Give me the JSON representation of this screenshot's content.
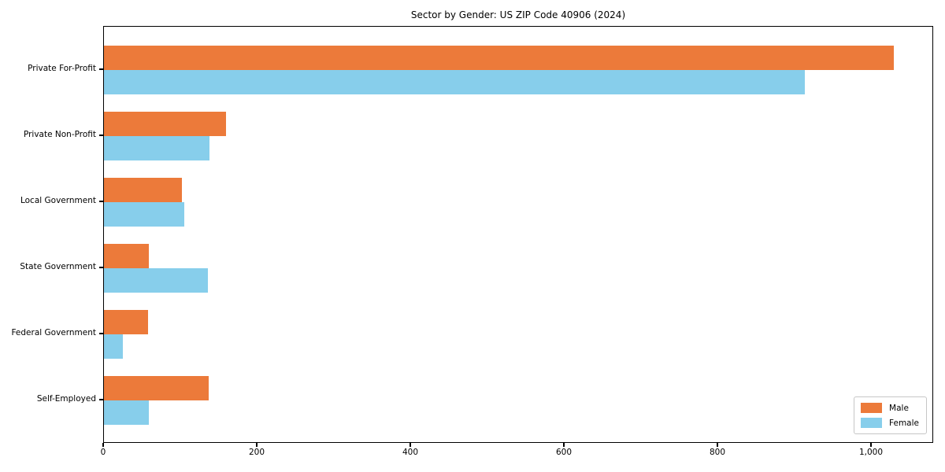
{
  "chart_data": {
    "type": "bar",
    "orientation": "horizontal",
    "title": "Sector by Gender: US ZIP Code 40906 (2024)",
    "categories": [
      "Private For-Profit",
      "Private Non-Profit",
      "Local Government",
      "State Government",
      "Federal Government",
      "Self-Employed"
    ],
    "series": [
      {
        "name": "Male",
        "color": "#ec7a3a",
        "values": [
          1029,
          159,
          101,
          58,
          57,
          136
        ]
      },
      {
        "name": "Female",
        "color": "#87ceeb",
        "values": [
          913,
          137,
          105,
          135,
          25,
          58
        ]
      }
    ],
    "xlabel": "",
    "ylabel": "",
    "xlim": [
      0,
      1081
    ],
    "xticks": {
      "values": [
        0,
        200,
        400,
        600,
        800,
        1000
      ],
      "labels": [
        "0",
        "200",
        "400",
        "600",
        "800",
        "1,000"
      ]
    },
    "grid": false,
    "legend": {
      "position": "lower-right",
      "entries": [
        "Male",
        "Female"
      ]
    }
  }
}
